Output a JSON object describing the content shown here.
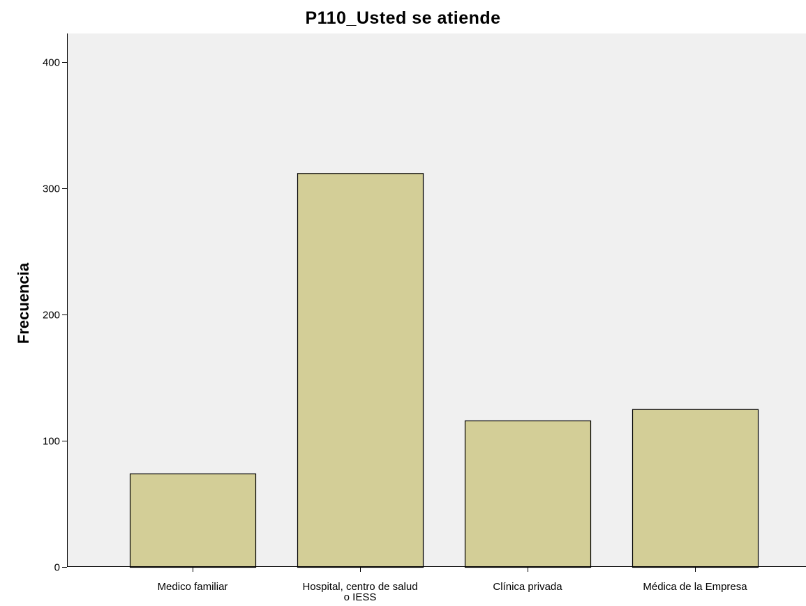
{
  "chart_data": {
    "type": "bar",
    "title": "P110_Usted  se  atiende",
    "xlabel": "",
    "ylabel": "Frecuencia",
    "categories": [
      [
        "Medico familiar"
      ],
      [
        "Hospital, centro de  salud",
        "o IESS"
      ],
      [
        "Clínica privada"
      ],
      [
        "Médica de la Empresa"
      ]
    ],
    "values": [
      74,
      312,
      116,
      125
    ],
    "ylim": [
      0,
      400
    ],
    "yticks": [
      0,
      100,
      200,
      300,
      400
    ],
    "grid": false,
    "legend": "none",
    "colors": {
      "bar_fill": "#d3ce97",
      "bar_stroke": "#000000",
      "plot_background": "#f0f0f0"
    }
  }
}
